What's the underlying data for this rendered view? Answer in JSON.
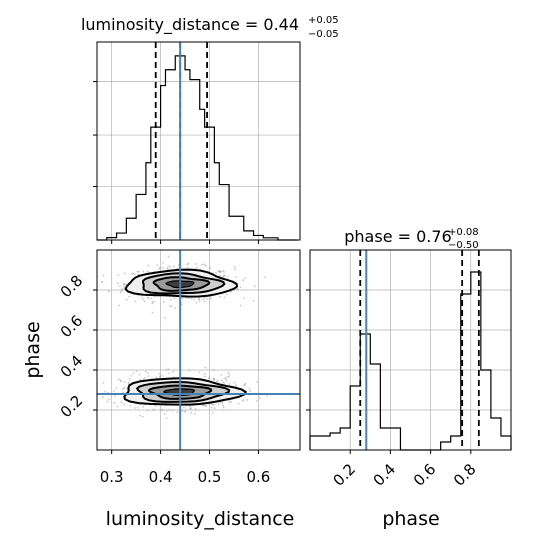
{
  "chart_data": {
    "type": "corner",
    "parameters": [
      "luminosity_distance",
      "phase"
    ],
    "truths": {
      "luminosity_distance": 0.44,
      "phase": 0.28
    },
    "panels": [
      {
        "id": "hist-luminosity_distance",
        "type": "histogram",
        "title": {
          "main": "luminosity_distance = 0.44",
          "sup": "+0.05",
          "sub": "−0.05"
        },
        "xlim": [
          0.27,
          0.685
        ],
        "ylim": [
          0,
          1
        ],
        "grid": true,
        "bin_edges": [
          0.27,
          0.28,
          0.29,
          0.3,
          0.31,
          0.32,
          0.33,
          0.34,
          0.35,
          0.36,
          0.37,
          0.38,
          0.39,
          0.4,
          0.41,
          0.42,
          0.43,
          0.44,
          0.45,
          0.46,
          0.47,
          0.48,
          0.49,
          0.5,
          0.51,
          0.52,
          0.53,
          0.54,
          0.55,
          0.56,
          0.57,
          0.58,
          0.59,
          0.6,
          0.61,
          0.62,
          0.63,
          0.64,
          0.65,
          0.66,
          0.67,
          0.68
        ],
        "counts": [
          0,
          0,
          0.012,
          0.012,
          0.035,
          0.035,
          0.11,
          0.11,
          0.23,
          0.23,
          0.39,
          0.57,
          0.57,
          0.78,
          0.86,
          0.86,
          0.93,
          0.93,
          0.86,
          0.81,
          0.81,
          0.66,
          0.57,
          0.57,
          0.39,
          0.28,
          0.28,
          0.12,
          0.12,
          0.12,
          0.046,
          0.046,
          0.023,
          0.023,
          0.011,
          0.011,
          0.011,
          0,
          0,
          0,
          0
        ],
        "quantile_lines": [
          0.39,
          0.44,
          0.495
        ],
        "truth_line": 0.44,
        "xticks": [
          0.3,
          0.4,
          0.5,
          0.6
        ],
        "yticks_fraction": [
          0.27,
          0.53,
          0.8
        ]
      },
      {
        "id": "hist-phase",
        "type": "histogram",
        "title": {
          "main": "phase = 0.76",
          "sup": "+0.08",
          "sub": "−0.50"
        },
        "xlim": [
          0.0,
          1.0
        ],
        "ylim": [
          0,
          1
        ],
        "grid": true,
        "bin_edges": [
          0.0,
          0.05,
          0.1,
          0.15,
          0.2,
          0.25,
          0.3,
          0.35,
          0.4,
          0.45,
          0.5,
          0.55,
          0.6,
          0.65,
          0.7,
          0.75,
          0.8,
          0.85,
          0.9,
          0.95,
          1.0
        ],
        "counts": [
          0.07,
          0.07,
          0.085,
          0.11,
          0.32,
          0.58,
          0.43,
          0.11,
          0.11,
          0.0,
          0.0,
          0.0,
          0.0,
          0.04,
          0.07,
          0.78,
          0.89,
          0.4,
          0.16,
          0.07
        ],
        "quantile_lines": [
          0.25,
          0.757,
          0.84
        ],
        "truth_line": 0.28,
        "xticks": [
          0.2,
          0.4,
          0.6,
          0.8
        ],
        "xtick_labels": [
          "0.2",
          "0.4",
          "0.6",
          "0.8"
        ],
        "yticks_fraction": [
          0.2,
          0.4,
          0.6,
          0.8
        ]
      },
      {
        "id": "2d-phase-vs-luminosity_distance",
        "type": "contour-scatter",
        "xlim": [
          0.27,
          0.685
        ],
        "ylim": [
          0.0,
          1.0
        ],
        "grid": true,
        "truth_x": 0.44,
        "truth_y": 0.28,
        "xticks": [
          0.3,
          0.4,
          0.5,
          0.6
        ],
        "xtick_labels": [
          "0.3",
          "0.4",
          "0.5",
          "0.6"
        ],
        "yticks": [
          0.2,
          0.4,
          0.6,
          0.8
        ],
        "ytick_labels": [
          "0.2",
          "0.4",
          "0.6",
          "0.8"
        ],
        "modes": [
          {
            "center": [
              0.44,
              0.83
            ],
            "sigma": [
              0.055,
              0.06
            ]
          },
          {
            "center": [
              0.44,
              0.29
            ],
            "sigma": [
              0.06,
              0.06
            ]
          }
        ],
        "contour_levels_sigma": [
          0.5,
          1.0,
          1.5,
          2.0
        ],
        "contour_fill_shades": [
          "#222222",
          "#777777",
          "#aaaaaa",
          "#dddddd"
        ]
      }
    ],
    "axis_labels": {
      "x_left": "luminosity_distance",
      "x_right": "phase",
      "y_left": "phase"
    },
    "colors": {
      "truth": "#4682b4",
      "line": "#000000",
      "grid": "#b0b0b0",
      "scatter": "#9a9a9a"
    }
  }
}
